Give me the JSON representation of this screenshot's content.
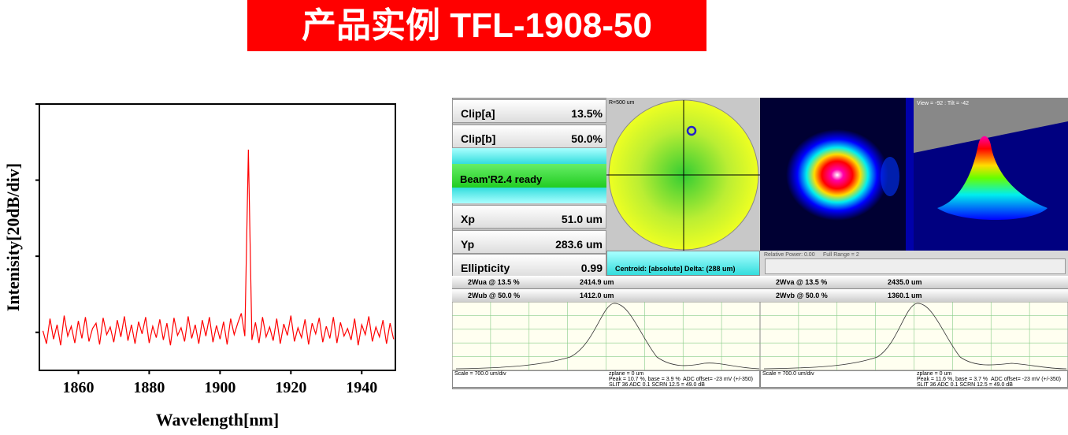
{
  "header": {
    "title": "产品实例 TFL-1908-50"
  },
  "chart_data": {
    "type": "line",
    "x_label": "Wavelength[nm]",
    "y_label": "Intenisity[20dB/div]",
    "xlim": [
      1849,
      1949.5
    ],
    "xticks": [
      1860,
      1880,
      1900,
      1920,
      1940
    ],
    "ylim": [
      0,
      3.5
    ],
    "yticks": [
      0.5,
      1.5,
      2.5,
      3.5
    ],
    "color": "#ff0000",
    "x": [
      1850,
      1851,
      1852,
      1853,
      1854,
      1855,
      1856,
      1857,
      1858,
      1859,
      1860,
      1861,
      1862,
      1863,
      1864,
      1865,
      1866,
      1867,
      1868,
      1869,
      1870,
      1871,
      1872,
      1873,
      1874,
      1875,
      1876,
      1877,
      1878,
      1879,
      1880,
      1881,
      1882,
      1883,
      1884,
      1885,
      1886,
      1887,
      1888,
      1889,
      1890,
      1891,
      1892,
      1893,
      1894,
      1895,
      1896,
      1897,
      1898,
      1899,
      1900,
      1901,
      1902,
      1903,
      1904,
      1905,
      1906,
      1907,
      1908,
      1909,
      1910,
      1911,
      1912,
      1913,
      1914,
      1915,
      1916,
      1917,
      1918,
      1919,
      1920,
      1921,
      1922,
      1923,
      1924,
      1925,
      1926,
      1927,
      1928,
      1929,
      1930,
      1931,
      1932,
      1933,
      1934,
      1935,
      1936,
      1937,
      1938,
      1939,
      1940,
      1941,
      1942,
      1943,
      1944,
      1945,
      1946,
      1947,
      1948,
      1949
    ],
    "values": [
      0.52,
      0.35,
      0.68,
      0.41,
      0.6,
      0.33,
      0.72,
      0.45,
      0.58,
      0.36,
      0.65,
      0.42,
      0.7,
      0.38,
      0.55,
      0.62,
      0.34,
      0.69,
      0.47,
      0.57,
      0.37,
      0.66,
      0.44,
      0.71,
      0.39,
      0.6,
      0.35,
      0.64,
      0.48,
      0.7,
      0.36,
      0.58,
      0.43,
      0.67,
      0.4,
      0.62,
      0.33,
      0.69,
      0.46,
      0.56,
      0.38,
      0.71,
      0.42,
      0.6,
      0.35,
      0.66,
      0.45,
      0.7,
      0.37,
      0.59,
      0.41,
      0.64,
      0.34,
      0.68,
      0.47,
      0.62,
      0.75,
      0.45,
      2.9,
      0.4,
      0.63,
      0.36,
      0.7,
      0.44,
      0.57,
      0.39,
      0.68,
      0.35,
      0.61,
      0.46,
      0.72,
      0.38,
      0.56,
      0.43,
      0.67,
      0.34,
      0.62,
      0.48,
      0.69,
      0.37,
      0.58,
      0.42,
      0.7,
      0.36,
      0.63,
      0.45,
      0.55,
      0.4,
      0.68,
      0.33,
      0.6,
      0.47,
      0.71,
      0.38,
      0.57,
      0.44,
      0.66,
      0.35,
      0.62,
      0.41
    ]
  },
  "profiler": {
    "rows": [
      [
        "Clip[a]",
        "13.5%"
      ],
      [
        "Clip[b]",
        "50.0%"
      ],
      [
        "Xp",
        "51.0 um"
      ],
      [
        "Yp",
        "283.6 um"
      ],
      [
        "Ellipticity",
        "0.99"
      ]
    ],
    "status": "Beam'R2.4 ready",
    "radius_label": "R=500 um",
    "view_label": "View = -92 : Tilt = -42",
    "relative_power": "Relative Power: 0.00",
    "full_range": "Full Range = 2",
    "centroid": "Centroid:   [absolute]    Delta: (288 um)",
    "widths": [
      [
        "2Wua @ 13.5 %",
        "2414.9 um",
        "2Wva @ 13.5 %",
        "2435.0 um"
      ],
      [
        "2Wub @ 50.0 %",
        "1412.0 um",
        "2Wvb @ 50.0 %",
        "1360.1 um"
      ]
    ],
    "footer_u": [
      "Scale = 700.0 um/div",
      "zplane = 0 um",
      "Peak = 10.7 %, base = 3.9 %",
      "ADC offset= -23 mV (+/-350)",
      "SLIT 36 ADC 0.1 SCRN 12.5 = 49.0 dB"
    ],
    "footer_v": [
      "Scale = 700.0 um/div",
      "zplane = 0 um",
      "Peak = 11.6 %, base = 3.7 %",
      "ADC offset= -23 mV (+/-350)",
      "SLIT 36 ADC 0.1 SCRN 12.5 = 49.0 dB"
    ]
  }
}
